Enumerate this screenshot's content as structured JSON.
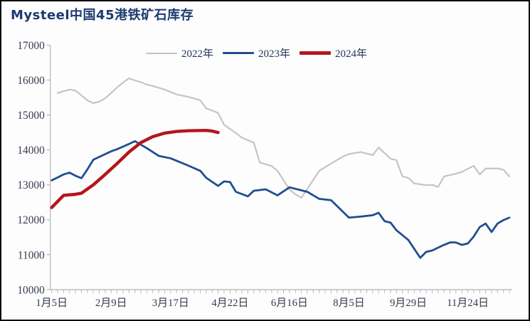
{
  "chart_data": {
    "type": "line",
    "title": "Mysteel中国45港铁矿石库存",
    "legend_position": "top",
    "grid": false,
    "y_axis": {
      "min": 10000,
      "max": 17000,
      "step": 1000,
      "tick_labels": [
        "17000",
        "16000",
        "15000",
        "14000",
        "13000",
        "12000",
        "11000",
        "10000"
      ]
    },
    "x_axis": {
      "n_categories": 78,
      "tick_every": 1,
      "labels": [
        "1月5日",
        "2月9日",
        "3月17日",
        "4月22日",
        "6月16日",
        "8月5日",
        "9月29日",
        "11月24日"
      ],
      "label_positions": [
        0,
        10,
        20,
        30,
        40,
        50,
        60,
        70
      ]
    },
    "series": [
      {
        "name": "2022年",
        "color": "#c4c4c4",
        "line_width": 2.2,
        "points": [
          [
            1,
            15630
          ],
          [
            2,
            15680
          ],
          [
            3,
            15730
          ],
          [
            4,
            15700
          ],
          [
            6,
            15420
          ],
          [
            7,
            15340
          ],
          [
            8,
            15380
          ],
          [
            9,
            15480
          ],
          [
            10,
            15630
          ],
          [
            11,
            15790
          ],
          [
            12,
            15930
          ],
          [
            13,
            16050
          ],
          [
            14,
            15990
          ],
          [
            15,
            15940
          ],
          [
            16,
            15870
          ],
          [
            17,
            15830
          ],
          [
            19,
            15730
          ],
          [
            21,
            15590
          ],
          [
            23,
            15520
          ],
          [
            25,
            15420
          ],
          [
            26,
            15190
          ],
          [
            28,
            15060
          ],
          [
            29,
            14720
          ],
          [
            31,
            14480
          ],
          [
            32,
            14350
          ],
          [
            34,
            14210
          ],
          [
            35,
            13640
          ],
          [
            37,
            13540
          ],
          [
            38,
            13400
          ],
          [
            40,
            12870
          ],
          [
            41,
            12730
          ],
          [
            42,
            12630
          ],
          [
            44,
            13140
          ],
          [
            45,
            13400
          ],
          [
            47,
            13610
          ],
          [
            49,
            13810
          ],
          [
            50,
            13880
          ],
          [
            52,
            13940
          ],
          [
            54,
            13850
          ],
          [
            55,
            14070
          ],
          [
            57,
            13750
          ],
          [
            58,
            13710
          ],
          [
            59,
            13240
          ],
          [
            60,
            13200
          ],
          [
            61,
            13040
          ],
          [
            63,
            12990
          ],
          [
            64,
            13000
          ],
          [
            65,
            12940
          ],
          [
            66,
            13240
          ],
          [
            68,
            13320
          ],
          [
            69,
            13370
          ],
          [
            71,
            13545
          ],
          [
            72,
            13300
          ],
          [
            73,
            13465
          ],
          [
            75,
            13470
          ],
          [
            76,
            13430
          ],
          [
            77,
            13240
          ]
        ]
      },
      {
        "name": "2023年",
        "color": "#1f4e8f",
        "line_width": 2.8,
        "points": [
          [
            0,
            13130
          ],
          [
            1,
            13210
          ],
          [
            2,
            13300
          ],
          [
            3,
            13350
          ],
          [
            4,
            13260
          ],
          [
            5,
            13190
          ],
          [
            6,
            13440
          ],
          [
            7,
            13720
          ],
          [
            8,
            13800
          ],
          [
            10,
            13960
          ],
          [
            11,
            14020
          ],
          [
            13,
            14170
          ],
          [
            14,
            14250
          ],
          [
            16,
            14050
          ],
          [
            18,
            13830
          ],
          [
            20,
            13760
          ],
          [
            21,
            13690
          ],
          [
            23,
            13550
          ],
          [
            25,
            13400
          ],
          [
            26,
            13200
          ],
          [
            28,
            12970
          ],
          [
            29,
            13100
          ],
          [
            30,
            13080
          ],
          [
            31,
            12800
          ],
          [
            33,
            12670
          ],
          [
            34,
            12830
          ],
          [
            36,
            12870
          ],
          [
            38,
            12700
          ],
          [
            40,
            12930
          ],
          [
            43,
            12800
          ],
          [
            45,
            12600
          ],
          [
            47,
            12560
          ],
          [
            50,
            12060
          ],
          [
            52,
            12090
          ],
          [
            54,
            12130
          ],
          [
            55,
            12200
          ],
          [
            56,
            11960
          ],
          [
            57,
            11920
          ],
          [
            58,
            11700
          ],
          [
            60,
            11420
          ],
          [
            62,
            10910
          ],
          [
            63,
            11080
          ],
          [
            64,
            11120
          ],
          [
            66,
            11280
          ],
          [
            67,
            11350
          ],
          [
            68,
            11350
          ],
          [
            69,
            11280
          ],
          [
            70,
            11320
          ],
          [
            71,
            11520
          ],
          [
            72,
            11790
          ],
          [
            73,
            11890
          ],
          [
            74,
            11650
          ],
          [
            75,
            11890
          ],
          [
            76,
            11990
          ],
          [
            77,
            12060
          ]
        ]
      },
      {
        "name": "2024年",
        "color": "#b3161c",
        "line_width": 4.5,
        "points": [
          [
            0,
            12350
          ],
          [
            2,
            12700
          ],
          [
            4,
            12730
          ],
          [
            5,
            12760
          ],
          [
            7,
            13000
          ],
          [
            9,
            13300
          ],
          [
            11,
            13610
          ],
          [
            13,
            13940
          ],
          [
            15,
            14210
          ],
          [
            17,
            14380
          ],
          [
            19,
            14480
          ],
          [
            21,
            14530
          ],
          [
            23,
            14550
          ],
          [
            26,
            14560
          ],
          [
            27,
            14540
          ],
          [
            28,
            14500
          ]
        ]
      }
    ],
    "colors": {
      "axis_line": "#b5b5b5",
      "axis_text": "#353c4e",
      "title_text": "#1c3a70",
      "legend_text": "#25355a",
      "background": "#fdfdfd",
      "border": "#0a0a0a"
    }
  }
}
